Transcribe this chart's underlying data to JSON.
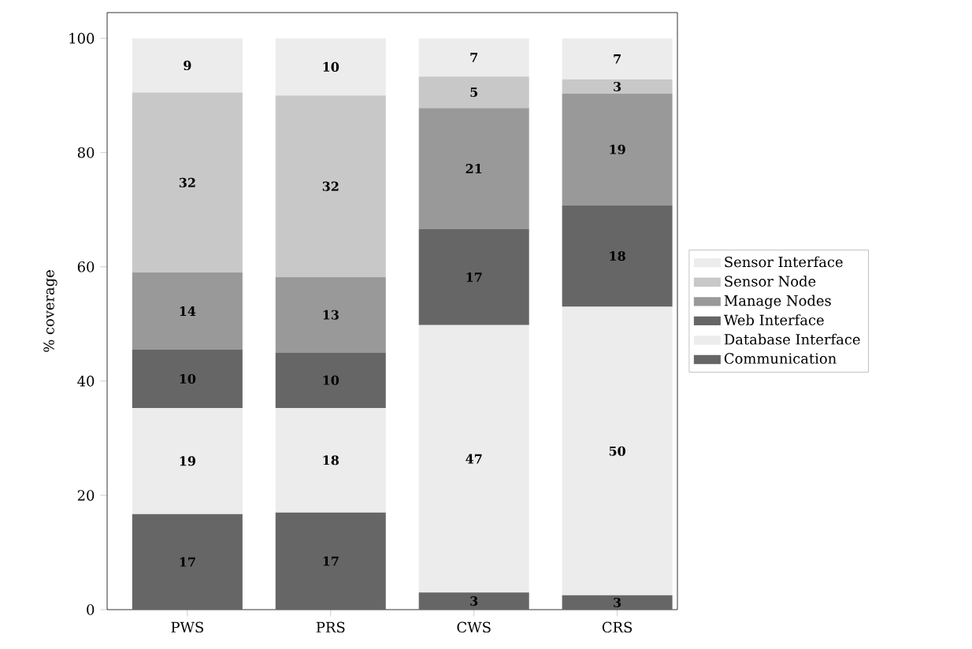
{
  "chart_data": {
    "type": "bar",
    "stacked": true,
    "ylabel": "% coverage",
    "categories": [
      "PWS",
      "PRS",
      "CWS",
      "CRS"
    ],
    "ylim": [
      0,
      104.5
    ],
    "yticks": [
      0,
      20,
      40,
      60,
      80,
      100
    ],
    "grid": false,
    "legend": "right",
    "series": [
      {
        "name": "Communication",
        "color": "#666666",
        "values": [
          16.7,
          17.0,
          3.0,
          2.5
        ],
        "value_labels": [
          "17",
          "17",
          "3",
          "3"
        ]
      },
      {
        "name": "Database Interface",
        "color": "#ececec",
        "values": [
          18.6,
          18.3,
          46.8,
          50.5
        ],
        "value_labels": [
          "19",
          "18",
          "47",
          "50"
        ]
      },
      {
        "name": "Web Interface",
        "color": "#666666",
        "values": [
          10.2,
          9.7,
          16.8,
          17.8
        ],
        "value_labels": [
          "10",
          "10",
          "17",
          "18"
        ]
      },
      {
        "name": "Manage Nodes",
        "color": "#999999",
        "values": [
          13.5,
          13.2,
          21.2,
          19.5
        ],
        "value_labels": [
          "14",
          "13",
          "21",
          "19"
        ]
      },
      {
        "name": "Sensor Node",
        "color": "#c8c8c8",
        "values": [
          31.5,
          31.8,
          5.5,
          2.5
        ],
        "value_labels": [
          "32",
          "32",
          "5",
          "3"
        ]
      },
      {
        "name": "Sensor Interface",
        "color": "#ececec",
        "values": [
          9.5,
          10.0,
          6.7,
          7.2
        ],
        "value_labels": [
          "9",
          "10",
          "7",
          "7"
        ]
      }
    ]
  }
}
